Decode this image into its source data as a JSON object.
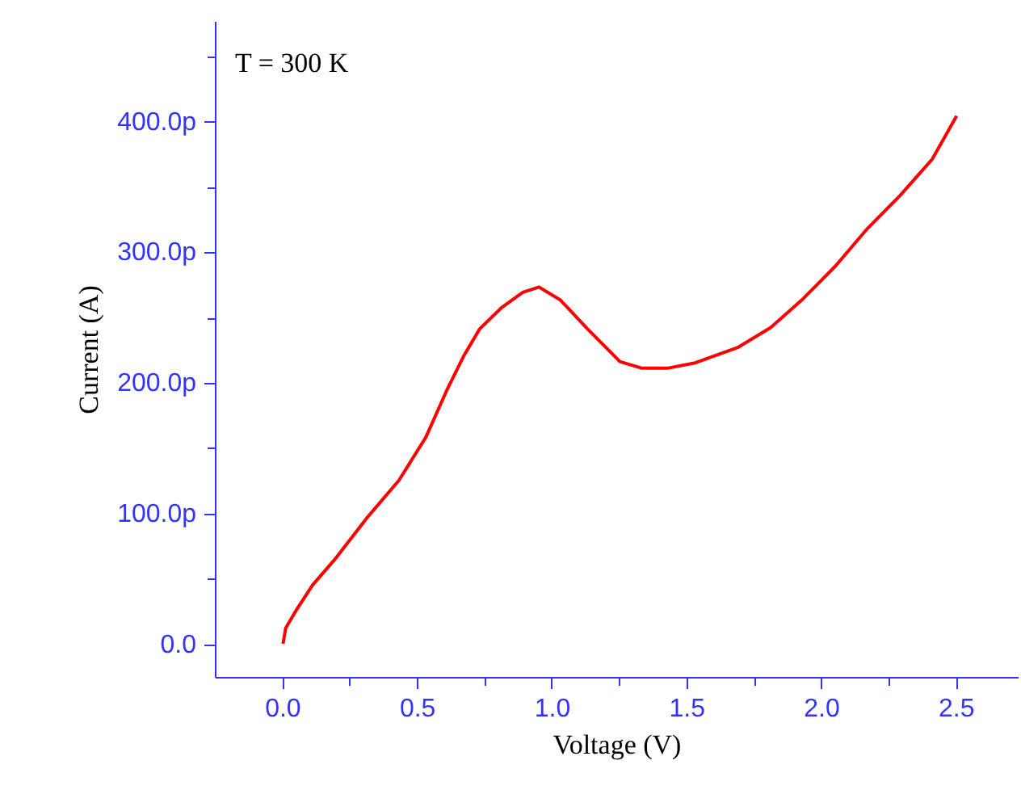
{
  "chart_data": {
    "type": "line",
    "xlabel": "Voltage (V)",
    "ylabel": "Current (A)",
    "annotations": [
      "T = 300 K"
    ],
    "xlim": [
      -0.25,
      2.73
    ],
    "ylim": [
      -25,
      477
    ],
    "xticks": [
      {
        "value": 0,
        "label": "0.0"
      },
      {
        "value": 0.25,
        "label": null
      },
      {
        "value": 0.5,
        "label": "0.5"
      },
      {
        "value": 0.75,
        "label": null
      },
      {
        "value": 1,
        "label": "1.0"
      },
      {
        "value": 1.25,
        "label": null
      },
      {
        "value": 1.5,
        "label": "1.5"
      },
      {
        "value": 1.75,
        "label": null
      },
      {
        "value": 2,
        "label": "2.0"
      },
      {
        "value": 2.25,
        "label": null
      },
      {
        "value": 2.5,
        "label": "2.5"
      }
    ],
    "yticks": [
      {
        "value": 0,
        "label": "0.0"
      },
      {
        "value": 50,
        "label": null
      },
      {
        "value": 100,
        "label": "100.0p"
      },
      {
        "value": 150,
        "label": null
      },
      {
        "value": 200,
        "label": "200.0p"
      },
      {
        "value": 250,
        "label": null
      },
      {
        "value": 300,
        "label": "300.0p"
      },
      {
        "value": 350,
        "label": null
      },
      {
        "value": 400,
        "label": "400.0p"
      },
      {
        "value": 450,
        "label": null
      }
    ],
    "marker": "none",
    "line_style": "solid",
    "series": [
      {
        "color": "#ff0000",
        "x": [
          0,
          0.01,
          0.05,
          0.11,
          0.19,
          0.31,
          0.43,
          0.53,
          0.61,
          0.67,
          0.73,
          0.81,
          0.89,
          0.95,
          1.03,
          1.13,
          1.25,
          1.33,
          1.43,
          1.53,
          1.69,
          1.81,
          1.93,
          2.05,
          2.17,
          2.29,
          2.41,
          2.5
        ],
        "values": [
          1,
          13,
          27,
          46,
          65,
          97,
          126,
          159,
          196,
          221,
          242,
          258,
          270,
          274,
          264,
          242,
          217,
          212,
          212,
          216,
          228,
          243,
          265,
          290,
          319,
          344,
          372,
          405
        ]
      }
    ]
  }
}
